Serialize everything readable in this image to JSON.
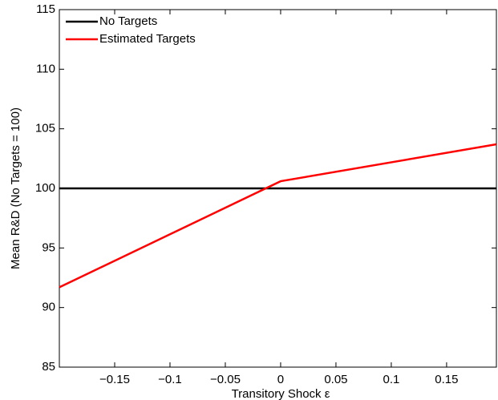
{
  "chart_data": {
    "type": "line",
    "xlabel": "Transitory Shock ε",
    "ylabel": "Mean R&D (No Targets = 100)",
    "x": [
      -0.2,
      0,
      0.195
    ],
    "series": [
      {
        "name": "No Targets",
        "color": "#000000",
        "values": [
          100,
          100,
          100
        ]
      },
      {
        "name": "Estimated Targets",
        "color": "#ff0000",
        "values": [
          91.7,
          100.6,
          103.7
        ]
      }
    ],
    "xlim": [
      -0.2,
      0.195
    ],
    "ylim": [
      85,
      115
    ],
    "xticks": [
      {
        "value": -0.15,
        "label": "−0.15"
      },
      {
        "value": -0.1,
        "label": "−0.1"
      },
      {
        "value": -0.05,
        "label": "−0.05"
      },
      0,
      0.05,
      0.1,
      0.15
    ],
    "yticks": [
      85,
      90,
      95,
      100,
      105,
      110,
      115
    ],
    "legend": "top-left"
  }
}
